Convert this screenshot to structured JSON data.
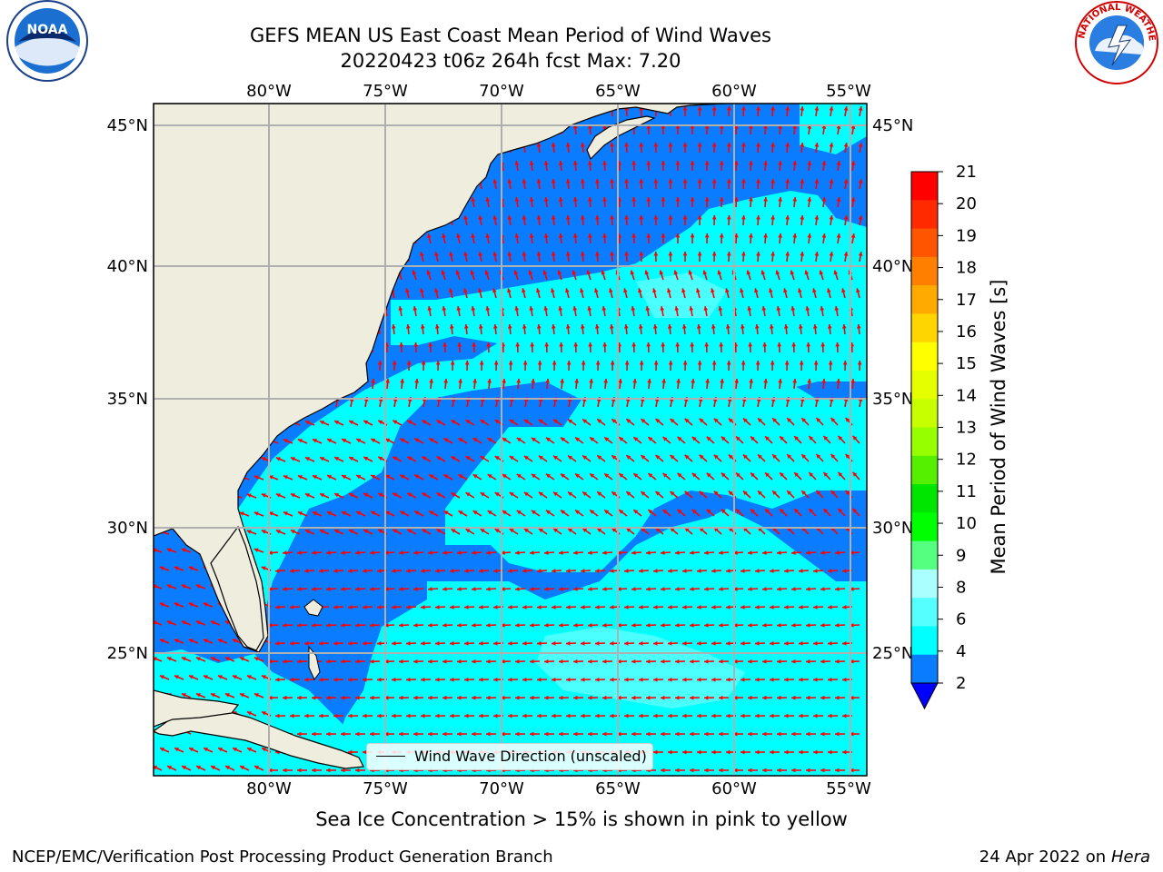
{
  "title": {
    "line1": "GEFS MEAN US East Coast Mean Period of Wind Waves",
    "line2": "20220423 t06z 264h fcst   Max: 7.20"
  },
  "map": {
    "lon_ticks": [
      "80°W",
      "75°W",
      "70°W",
      "65°W",
      "60°W",
      "55°W"
    ],
    "lat_ticks": [
      "45°N",
      "40°N",
      "35°N",
      "30°N",
      "25°N"
    ],
    "colors": {
      "land": "#efedde",
      "ocean_2_4": "#0a7cff",
      "ocean_4_6": "#00ffff",
      "ocean_6_8": "#4cffff",
      "arrow": "#ff0000",
      "grid": "#b0b0b0"
    },
    "legend": {
      "label": "Wind Wave Direction (unscaled)"
    }
  },
  "colorbar": {
    "label": "Mean Period of Wind Waves [s]",
    "ticks": [
      "21",
      "20",
      "19",
      "18",
      "17",
      "16",
      "15",
      "14",
      "13",
      "12",
      "11",
      "10",
      "9",
      "8",
      "6",
      "4",
      "2"
    ],
    "colors": [
      "#ff0000",
      "#ff2a00",
      "#ff5500",
      "#ff8000",
      "#ffaa00",
      "#ffd500",
      "#ffff00",
      "#e6ff00",
      "#c8ff00",
      "#96ff00",
      "#55f000",
      "#00e600",
      "#00ff00",
      "#55ff80",
      "#aaffff",
      "#55ffff",
      "#00ffff",
      "#0a7cff"
    ],
    "extend_color": "#0000ff"
  },
  "subtitle": "Sea Ice Concentration > 15% is shown in pink to yellow",
  "footer": {
    "left": "NCEP/EMC/Verification Post Processing Product Generation Branch",
    "right_date": "24 Apr 2022 on ",
    "right_host": "Hera"
  },
  "logos": {
    "noaa_text": "NOAA",
    "nws_text": "NATIONAL WEATHER SERVICE"
  }
}
